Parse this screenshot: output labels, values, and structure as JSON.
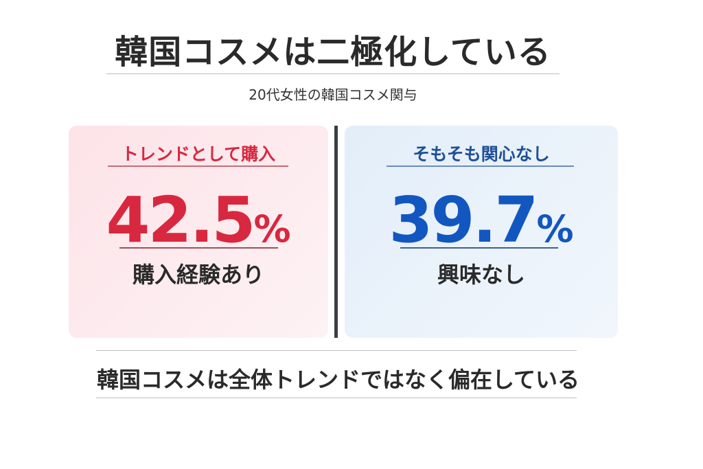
{
  "title": "韓国コスメは二極化している",
  "subtitle": "20代女性の韓国コスメ関与",
  "colors": {
    "red": "#d8283f",
    "blue": "#1257c0",
    "divider": "#3a3d44"
  },
  "left_card": {
    "heading": "トレンドとして購入",
    "value": "42.5",
    "unit": "%",
    "label": "購入経験あり"
  },
  "right_card": {
    "heading": "そもそも関心なし",
    "value": "39.7",
    "unit": "%",
    "label": "興味なし"
  },
  "conclusion": "韓国コスメは全体トレンドではなく偏在している"
}
